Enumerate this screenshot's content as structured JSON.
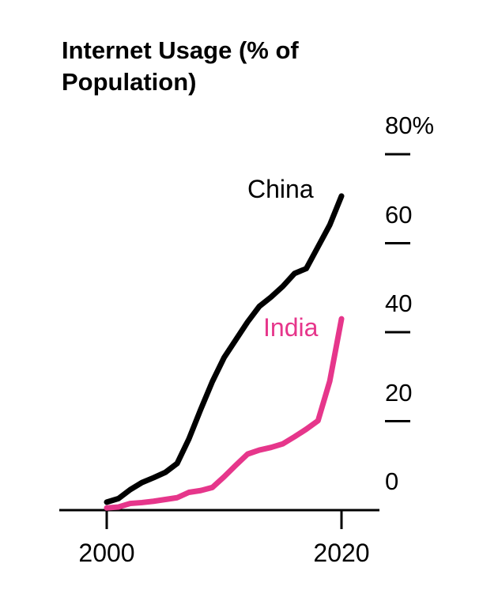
{
  "title": "Internet Usage (% of Population)",
  "chart_data": {
    "type": "line",
    "title": "Internet Usage (% of Population)",
    "x": [
      2000,
      2001,
      2002,
      2003,
      2004,
      2005,
      2006,
      2007,
      2008,
      2009,
      2010,
      2011,
      2012,
      2013,
      2014,
      2015,
      2016,
      2017,
      2018,
      2019,
      2020
    ],
    "series": [
      {
        "name": "China",
        "color": "#000000",
        "values": [
          1.8,
          2.6,
          4.6,
          6.2,
          7.3,
          8.5,
          10.5,
          16.0,
          22.6,
          28.9,
          34.3,
          38.3,
          42.3,
          45.8,
          47.9,
          50.3,
          53.2,
          54.3,
          59.2,
          64.1,
          70.6
        ]
      },
      {
        "name": "India",
        "color": "#e6368b",
        "values": [
          0.5,
          0.7,
          1.5,
          1.7,
          2.0,
          2.4,
          2.8,
          4.0,
          4.4,
          5.1,
          7.5,
          10.1,
          12.6,
          13.5,
          14.1,
          14.9,
          16.5,
          18.2,
          20.1,
          29.0,
          43.0
        ]
      }
    ],
    "xlabel": "",
    "ylabel": "",
    "xlim": [
      2000,
      2020
    ],
    "ylim": [
      0,
      80
    ],
    "xticks": [
      "2000",
      "2020"
    ],
    "xtick_years": [
      2000,
      2020
    ],
    "yticks": [
      "80%",
      "60",
      "40",
      "20",
      "0"
    ],
    "ytick_values": [
      80,
      60,
      40,
      20,
      0
    ],
    "grid": false,
    "legend_position": "inline-labels",
    "axis_color": "#000000"
  }
}
